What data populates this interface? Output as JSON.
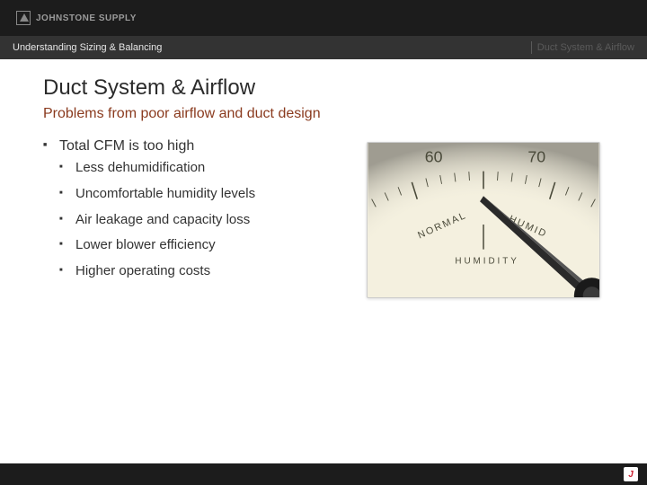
{
  "brand": {
    "name": "JOHNSTONE SUPPLY"
  },
  "subheader": {
    "left": "Understanding Sizing & Balancing",
    "right": "Duct System & Airflow"
  },
  "title": "Duct System & Airflow",
  "subtitle": "Problems from poor airflow and duct design",
  "bullets": {
    "main": "Total CFM is too high",
    "subs": [
      "Less dehumidification",
      "Uncomfortable humidity levels",
      "Air leakage and capacity loss",
      "Lower blower efficiency",
      "Higher operating costs"
    ]
  },
  "gauge": {
    "background": "#f4f0df",
    "tick_color": "#4a4a3a",
    "needle_color": "#2a2a2a",
    "labels": {
      "left_num": "60",
      "right_num": "70",
      "left_word": "NORMAL",
      "right_word": "HUMID",
      "bottom_word": "HUMIDITY"
    },
    "label_color": "#4a4a3a",
    "label_fontsize": 10
  },
  "colors": {
    "topbar": "#1c1c1c",
    "subbar": "#333333",
    "title": "#2b2b2b",
    "subtitle": "#8a3a1e",
    "text": "#333333"
  }
}
